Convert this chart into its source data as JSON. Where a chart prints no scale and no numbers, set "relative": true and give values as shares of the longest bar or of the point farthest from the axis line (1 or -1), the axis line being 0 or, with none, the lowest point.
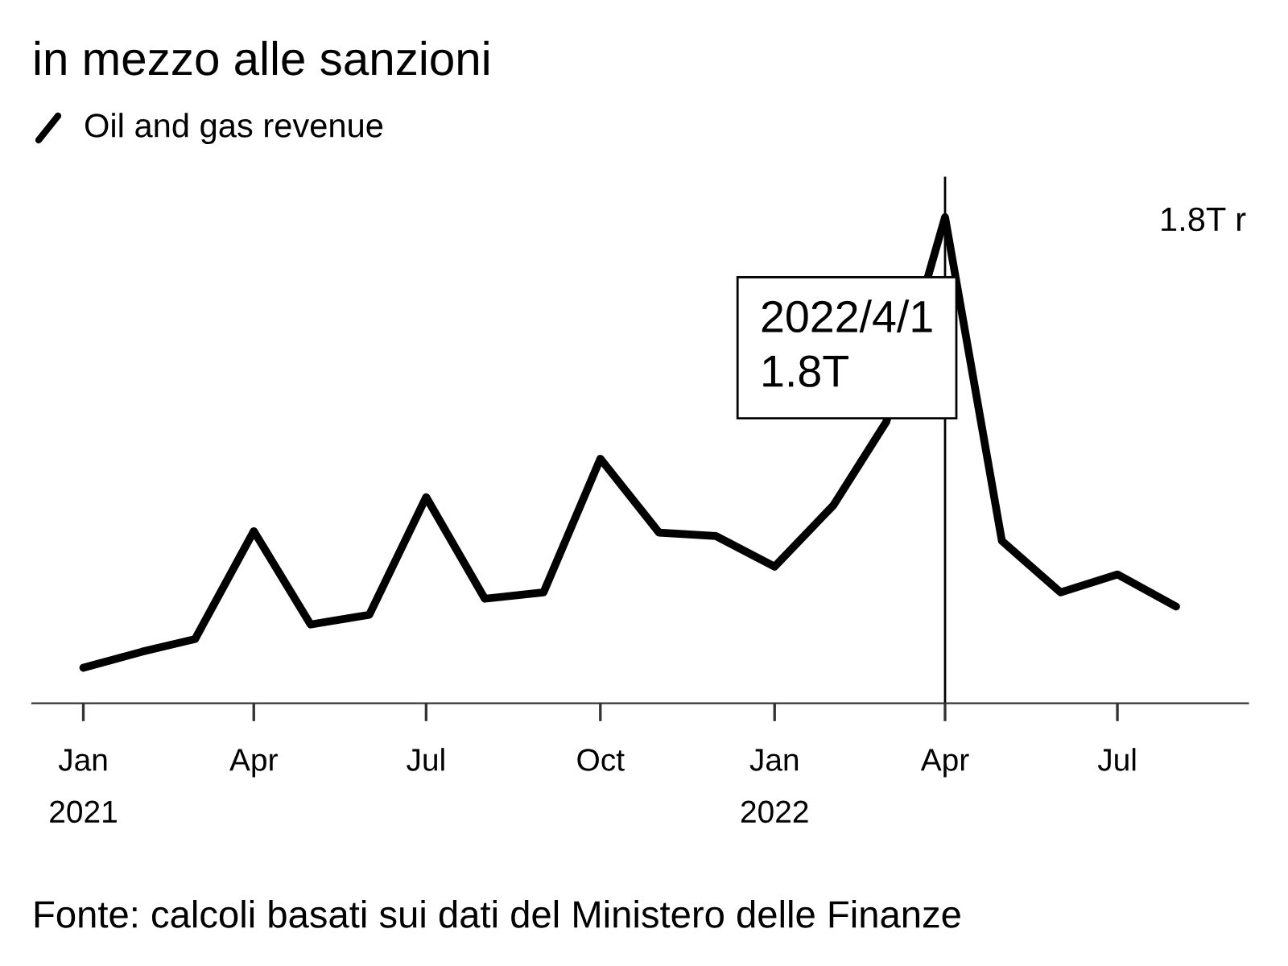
{
  "chart_data": {
    "type": "line",
    "title": "in mezzo alle sanzioni",
    "relative": true,
    "legend": "top left",
    "marker": "none",
    "line_style": "solid",
    "x": [
      "2021-01",
      "2021-02",
      "2021-03",
      "2021-04",
      "2021-05",
      "2021-06",
      "2021-07",
      "2021-08",
      "2021-09",
      "2021-10",
      "2021-11",
      "2021-12",
      "2022-01",
      "2022-02",
      "2022-03",
      "2022-04",
      "2022-05",
      "2022-06",
      "2022-07",
      "2022-08"
    ],
    "series": [
      {
        "name": "Oil and gas revenue",
        "color": "#000000",
        "values": [
          0.073,
          0.106,
          0.132,
          0.354,
          0.162,
          0.182,
          0.424,
          0.215,
          0.228,
          0.503,
          0.351,
          0.344,
          0.281,
          0.407,
          0.579,
          1.0,
          0.334,
          0.228,
          0.265,
          0.199
        ]
      }
    ],
    "xlim": [
      "2020-12-05",
      "2022-09-08"
    ],
    "xticks": [
      {
        "value": "2021-01",
        "label": "Jan\n2021"
      },
      {
        "value": "2021-04",
        "label": "Apr"
      },
      {
        "value": "2021-07",
        "label": "Jul"
      },
      {
        "value": "2021-10",
        "label": "Oct"
      },
      {
        "value": "2022-01",
        "label": "Jan\n2022"
      },
      {
        "value": "2022-04",
        "label": "Apr"
      },
      {
        "value": "2022-07",
        "label": "Jul"
      }
    ],
    "ref_lines": [
      {
        "axis": "x",
        "value": "2022-04",
        "color": "#000000"
      }
    ],
    "annotations": [
      "2022/4/1\n1.8T",
      "1.8T r",
      "Fonte: calcoli basati sui dati del Ministero delle Finanze"
    ]
  }
}
